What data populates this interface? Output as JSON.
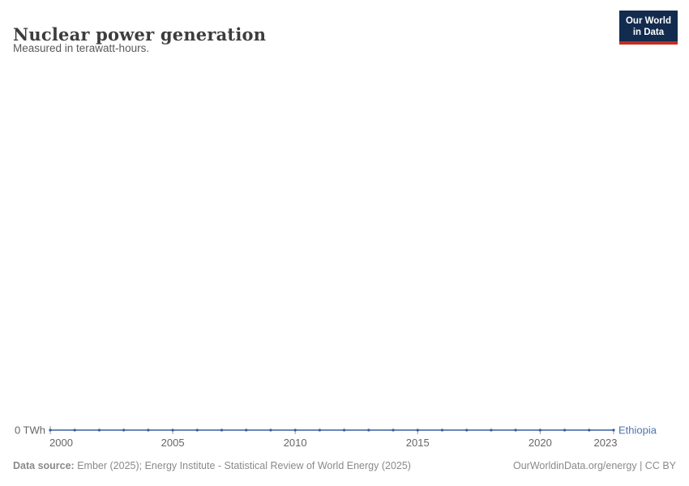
{
  "header": {
    "title": "Nuclear power generation",
    "subtitle": "Measured in terawatt-hours.",
    "logo": {
      "line1": "Our World",
      "line2": "in Data"
    }
  },
  "chart_data": {
    "type": "line",
    "title": "Nuclear power generation",
    "subtitle": "Measured in terawatt-hours.",
    "unit": "TWh",
    "x": [
      2000,
      2001,
      2002,
      2003,
      2004,
      2005,
      2006,
      2007,
      2008,
      2009,
      2010,
      2011,
      2012,
      2013,
      2014,
      2015,
      2016,
      2017,
      2018,
      2019,
      2020,
      2021,
      2022,
      2023
    ],
    "series": [
      {
        "name": "Ethiopia",
        "values": [
          0,
          0,
          0,
          0,
          0,
          0,
          0,
          0,
          0,
          0,
          0,
          0,
          0,
          0,
          0,
          0,
          0,
          0,
          0,
          0,
          0,
          0,
          0,
          0
        ]
      }
    ],
    "x_tick_years": [
      2000,
      2005,
      2010,
      2015,
      2020,
      2023
    ],
    "y_axis_label": "0 TWh",
    "xlim": [
      2000,
      2023
    ],
    "ylim": [
      0,
      0
    ],
    "grid": false,
    "legend_position": "end-of-line",
    "entity_label": "Ethiopia"
  },
  "footer": {
    "source_label": "Data source:",
    "source_text": " Ember (2025); Energy Institute - Statistical Review of World Energy (2025)",
    "right_text": "OurWorldinData.org/energy | CC BY"
  },
  "colors": {
    "line": "#5377ad",
    "marker": "#3b5b98",
    "entity_label": "#4f74a8",
    "axis_text": "#666666",
    "tick": "#9a9a9a",
    "title": "#3d3d3d",
    "subtitle": "#595959",
    "footer_text": "#8a8a8a",
    "logo_bg": "#122b4f",
    "logo_red": "#c22d21"
  }
}
